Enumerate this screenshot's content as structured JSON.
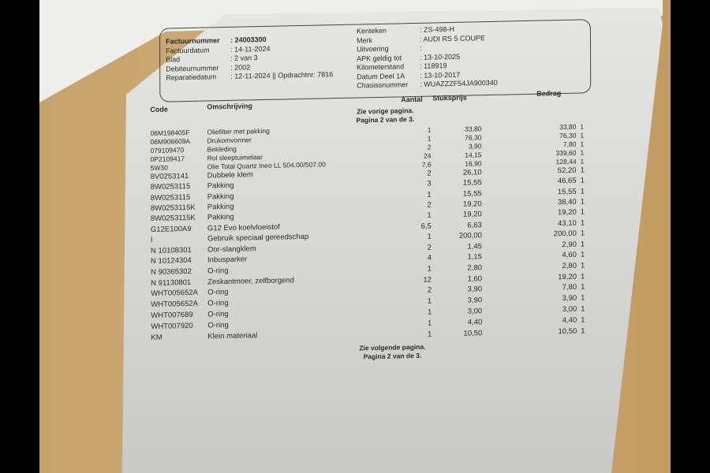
{
  "header": {
    "left": [
      {
        "label": "Factuurnummer",
        "value": ": 24003300",
        "bold": true
      },
      {
        "label": "Factuurdatum",
        "value": ": 14-11-2024"
      },
      {
        "label": "Blad",
        "value": ": 2 van 3"
      },
      {
        "label": "Debiteurnummer",
        "value": ": 2002"
      },
      {
        "label": "Reparatiedatum",
        "value": ": 12-11-2024 || Opdrachtnr: 7816"
      }
    ],
    "right": [
      {
        "label": "Kenteken",
        "value": ": ZS-498-H"
      },
      {
        "label": "Merk",
        "value": ": AUDI RS 5 COUPE"
      },
      {
        "label": "Uitvoering",
        "value": ":"
      },
      {
        "label": "APK geldig tot",
        "value": ": 13-10-2025"
      },
      {
        "label": "Kilometerstand",
        "value": ": 118919"
      },
      {
        "label": "Datum Deel 1A",
        "value": ": 13-10-2017"
      },
      {
        "label": "Chasissnummer",
        "value": ": WUAZZZF54JA900340"
      }
    ]
  },
  "columns": {
    "code": "Code",
    "description": "Omschrijving",
    "quantity": "Aantal",
    "unit_price": "Stuksprijs",
    "amount": "Bedrag"
  },
  "notes": {
    "previous_1": "Zie vorige pagina.",
    "previous_2": "Pagina 2 van de 3.",
    "next_1": "Zie volgende pagina.",
    "next_2": "Pagina 2 van de 3."
  },
  "rows": [
    {
      "code": "06M198405F",
      "description": "Oliefilter met pakking",
      "quantity": "1",
      "unit_price": "33,80",
      "amount": "33,80",
      "flag": "1"
    },
    {
      "code": "06M906609A",
      "description": "Drukomvormer",
      "quantity": "1",
      "unit_price": "76,30",
      "amount": "76,30",
      "flag": "1"
    },
    {
      "code": "079109470",
      "description": "Bekleding",
      "quantity": "2",
      "unit_price": "3,90",
      "amount": "7,80",
      "flag": "1"
    },
    {
      "code": "0P2109417",
      "description": "Rol sleeptuimelaar",
      "quantity": "24",
      "unit_price": "14,15",
      "amount": "339,60",
      "flag": "1"
    },
    {
      "code": "5W30",
      "description": "Olie Total Quartz Ineo LL 504.00/507.00",
      "quantity": "7,6",
      "unit_price": "16,90",
      "amount": "128,44",
      "flag": "1"
    },
    {
      "code": "8V0253141",
      "description": "Dubbele klem",
      "quantity": "2",
      "unit_price": "26,10",
      "amount": "52,20",
      "flag": "1"
    },
    {
      "code": "8W0253115",
      "description": "Pakking",
      "quantity": "3",
      "unit_price": "15,55",
      "amount": "46,65",
      "flag": "1"
    },
    {
      "code": "8W0253115",
      "description": "Pakking",
      "quantity": "1",
      "unit_price": "15,55",
      "amount": "15,55",
      "flag": "1"
    },
    {
      "code": "8W0253115K",
      "description": "Pakking",
      "quantity": "2",
      "unit_price": "19,20",
      "amount": "38,40",
      "flag": "1"
    },
    {
      "code": "8W0253115K",
      "description": "Pakking",
      "quantity": "1",
      "unit_price": "19,20",
      "amount": "19,20",
      "flag": "1"
    },
    {
      "code": "G12E100A9",
      "description": "G12 Evo koelvloeistof",
      "quantity": "6,5",
      "unit_price": "6,63",
      "amount": "43,10",
      "flag": "1"
    },
    {
      "code": "I",
      "description": "Gebruik speciaal gereedschap",
      "quantity": "1",
      "unit_price": "200,00",
      "amount": "200,00",
      "flag": "1"
    },
    {
      "code": "N 10108301",
      "description": "Oor-slangklem",
      "quantity": "2",
      "unit_price": "1,45",
      "amount": "2,90",
      "flag": "1"
    },
    {
      "code": "N 10124304",
      "description": "Inbusparker",
      "quantity": "4",
      "unit_price": "1,15",
      "amount": "4,60",
      "flag": "1"
    },
    {
      "code": "N 90365302",
      "description": "O-ring",
      "quantity": "1",
      "unit_price": "2,80",
      "amount": "2,80",
      "flag": "1"
    },
    {
      "code": "N 91130801",
      "description": "Zeskantmoer, zelfborgend",
      "quantity": "12",
      "unit_price": "1,60",
      "amount": "19,20",
      "flag": "1"
    },
    {
      "code": "WHT005652A",
      "description": "O-ring",
      "quantity": "2",
      "unit_price": "3,90",
      "amount": "7,80",
      "flag": "1"
    },
    {
      "code": "WHT005652A",
      "description": "O-ring",
      "quantity": "1",
      "unit_price": "3,90",
      "amount": "3,90",
      "flag": "1"
    },
    {
      "code": "WHT007689",
      "description": "O-ring",
      "quantity": "1",
      "unit_price": "3,00",
      "amount": "3,00",
      "flag": "1"
    },
    {
      "code": "WHT007920",
      "description": "O-ring",
      "quantity": "1",
      "unit_price": "4,40",
      "amount": "4,40",
      "flag": "1"
    },
    {
      "code": "KM",
      "description": "Klein materiaal",
      "quantity": "1",
      "unit_price": "10,50",
      "amount": "10,50",
      "flag": "1"
    }
  ]
}
